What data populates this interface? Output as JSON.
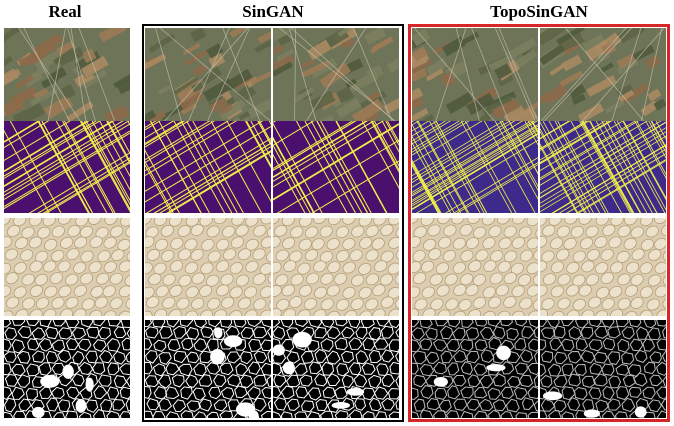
{
  "columns": {
    "real": "Real",
    "singan": "SinGAN",
    "toposingan": "TopoSinGAN"
  },
  "colors": {
    "satellite_base": "#6e7458",
    "satellite_patch": "#8c6a4a",
    "mask_background": "#4b0f6e",
    "mask_edges": "#f2f24a",
    "topo_mask_background": "#3d2a8a",
    "texture_base": "#dccdb0",
    "cell_fill": "#ffffff",
    "frame_singan": "#000000",
    "frame_toposingan": "#d62728"
  },
  "row_types": [
    "satellite",
    "satellite-mask",
    "texture",
    "cell-mask"
  ]
}
